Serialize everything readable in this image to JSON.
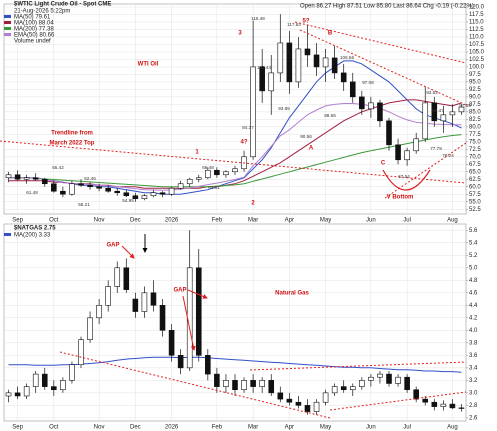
{
  "chart_data": [
    {
      "type": "candlestick",
      "title": "$WTIC Light Crude Oil - Spot CME",
      "date": "21-Aug-2026 5:22pm",
      "quote": "Open 86.27 High 87.51 Low 85.80 Last 86.64 Chg -0.19 (-0.22%)",
      "volume_label": "Volume undef",
      "categories": [
        null,
        "Sep",
        null,
        null,
        null,
        "Oct",
        null,
        null,
        null,
        null,
        "Nov",
        null,
        null,
        null,
        "Dec",
        null,
        null,
        null,
        "2026",
        null,
        null,
        null,
        null,
        "Feb",
        null,
        null,
        null,
        "Mar",
        null,
        null,
        null,
        "Apr",
        null,
        null,
        null,
        "May",
        null,
        null,
        null,
        null,
        "Jun",
        null,
        null,
        null,
        "Jul",
        null,
        null,
        null,
        null,
        "Aug",
        null
      ],
      "open": [
        63,
        64,
        62.5,
        63,
        62.5,
        61,
        58.5,
        57.5,
        61,
        60.5,
        60,
        59.5,
        58.5,
        58,
        57,
        56,
        57,
        58,
        57.5,
        59.5,
        61,
        62.5,
        63,
        65.5,
        64,
        65,
        66,
        70,
        100,
        92,
        98,
        108,
        95,
        106,
        104,
        100,
        103,
        98,
        95,
        90,
        86,
        88,
        82,
        74,
        69,
        72,
        76,
        88,
        82,
        84,
        85
      ],
      "high": [
        65,
        65.5,
        64,
        64.5,
        63,
        62,
        60,
        62,
        62.5,
        61.5,
        61,
        60.5,
        59.5,
        59,
        58,
        57.5,
        59,
        58.5,
        60,
        62,
        63,
        64,
        66.5,
        66.5,
        65.5,
        67,
        72,
        115.5,
        106,
        104,
        117.6,
        112,
        110,
        114,
        108,
        106,
        107,
        101,
        98,
        92,
        90,
        89,
        83,
        76,
        73,
        78,
        93.5,
        90,
        87,
        87.5,
        87.5
      ],
      "low": [
        61.5,
        62,
        61,
        62,
        60,
        58,
        56.5,
        57,
        60,
        59,
        58.5,
        58,
        57,
        56.5,
        55,
        55.5,
        56.5,
        56.5,
        57,
        59,
        60,
        61.5,
        62.5,
        63,
        63,
        64,
        65,
        69,
        88,
        84,
        95,
        91,
        93,
        100,
        97,
        95,
        96,
        92,
        88,
        84,
        83,
        80,
        72,
        67.5,
        67,
        71,
        75,
        80,
        78,
        80,
        84
      ],
      "close": [
        64,
        62.5,
        63,
        62.5,
        61,
        58.5,
        57.5,
        61,
        60.5,
        60,
        59.5,
        58.5,
        58,
        57,
        56,
        57,
        58,
        57.5,
        59.5,
        61,
        62.5,
        63,
        65.5,
        64,
        65,
        66,
        70,
        100,
        92,
        98,
        108,
        95,
        106,
        104,
        100,
        103,
        98,
        95,
        90,
        86,
        88,
        82,
        74,
        69,
        72,
        76,
        88,
        82,
        84,
        85,
        86.6
      ],
      "series": [
        {
          "name": "MA(50) 79.61",
          "color": "#3050c8",
          "values": [
            63,
            63,
            63,
            63,
            62.5,
            62,
            61.5,
            61,
            60.5,
            60.5,
            60,
            60,
            59.5,
            59,
            58.5,
            58,
            58,
            57.5,
            57.5,
            57.5,
            58,
            58.5,
            59,
            60,
            61,
            62,
            63,
            66,
            69,
            73,
            78,
            83,
            87,
            91,
            95,
            98,
            100,
            102,
            102,
            101,
            99,
            97,
            95,
            92,
            89,
            86,
            84,
            83,
            82,
            81,
            79.6
          ]
        },
        {
          "name": "MA(100) 88.04",
          "color": "#a02040",
          "values": [
            62,
            62,
            62,
            62,
            62,
            61.5,
            61.5,
            61,
            61,
            61,
            60.5,
            60.5,
            60,
            60,
            60,
            59.5,
            59.5,
            59.5,
            59.5,
            59.5,
            59.5,
            59.5,
            60,
            60,
            60.5,
            61,
            62,
            63.5,
            65,
            66.5,
            68,
            70,
            72,
            74,
            76,
            78,
            80,
            82,
            83.5,
            85,
            86,
            87,
            88,
            88.5,
            89,
            89,
            88.5,
            88,
            87.5,
            87,
            88
          ]
        },
        {
          "name": "MA(200) 77.38",
          "color": "#3a9a3a",
          "values": [
            63,
            63,
            63,
            62.8,
            62.6,
            62.4,
            62.2,
            62,
            61.8,
            61.6,
            61.4,
            61.2,
            61,
            60.8,
            60.6,
            60.4,
            60.2,
            60,
            60,
            60,
            60,
            60,
            60,
            60.2,
            60.4,
            60.6,
            61,
            61.8,
            62.6,
            63.4,
            64.2,
            65,
            65.8,
            66.6,
            67.4,
            68.2,
            69,
            69.8,
            70.6,
            71.4,
            72,
            72.6,
            73.2,
            73.8,
            74.4,
            75,
            75.6,
            76.2,
            76.7,
            77.1,
            77.4
          ]
        },
        {
          "name": "EMA(50) 80.66",
          "color": "#b080d0",
          "values": [
            63,
            63,
            63,
            62.8,
            62.4,
            61.9,
            61.3,
            61.1,
            60.9,
            60.8,
            60.6,
            60.3,
            60,
            59.7,
            59.3,
            59,
            58.9,
            58.8,
            58.9,
            59.2,
            59.6,
            60.1,
            60.7,
            61.2,
            61.8,
            62.4,
            63.2,
            67,
            70,
            73.5,
            77,
            79,
            81.5,
            84,
            85.6,
            87,
            87.5,
            87.8,
            87.8,
            87.5,
            87,
            86.2,
            85,
            83.5,
            82.3,
            81.5,
            81.2,
            80.9,
            80.8,
            80.7,
            80.66
          ]
        }
      ],
      "ylim": [
        50.9,
        121
      ],
      "yticks": [
        52.5,
        {
          "value": 55,
          "label": "55.0"
        },
        57.5,
        {
          "value": 60,
          "label": "60.0"
        },
        62.5,
        {
          "value": 65,
          "label": "65.0"
        },
        67.5,
        {
          "value": 70,
          "label": "70.0"
        },
        72.5,
        {
          "value": 75,
          "label": "75.0"
        },
        77.5,
        {
          "value": 80,
          "label": "80.0"
        },
        82.5,
        {
          "value": 85,
          "label": "85.0"
        },
        87.5,
        {
          "value": 90,
          "label": "90.0"
        },
        92.5,
        {
          "value": 95,
          "label": "95.0"
        },
        97.5,
        {
          "value": 100,
          "label": "100.0"
        },
        102.5,
        {
          "value": 105,
          "label": "105.0"
        },
        107.5,
        {
          "value": 110,
          "label": "110.0"
        },
        112.5,
        {
          "value": 115,
          "label": "115.0"
        },
        117.5,
        {
          "value": 120,
          "label": "120.0"
        }
      ],
      "grid": true,
      "annotations": [
        "WTI Oil",
        "Trendline from",
        "March 2022 Top",
        "V Bottom",
        "1",
        "2",
        "3",
        "4?",
        "5?",
        "A",
        "B",
        "C",
        "115.48",
        "117.63",
        "102.44",
        "106.56",
        "97.08",
        "93.53",
        "84.37",
        "93.85",
        "90.56",
        "88.66",
        "86.47",
        "87.69",
        "77.79",
        "79.24",
        "67.54",
        "66.48",
        "61.81",
        "65.42",
        "62.46",
        "61.48",
        "58.21",
        "54.95"
      ]
    },
    {
      "type": "candlestick",
      "title": "$NATGAS 2.75",
      "categories": [
        null,
        "Sep",
        null,
        null,
        null,
        "Oct",
        null,
        null,
        null,
        null,
        "Nov",
        null,
        null,
        null,
        "Dec",
        null,
        null,
        null,
        "2026",
        null,
        null,
        null,
        null,
        "Feb",
        null,
        null,
        null,
        "Mar",
        null,
        null,
        null,
        "Apr",
        null,
        null,
        null,
        "May",
        null,
        null,
        null,
        null,
        "Jun",
        null,
        null,
        null,
        "Jul",
        null,
        null,
        null,
        null,
        "Aug",
        null
      ],
      "open": [
        2.95,
        3.0,
        2.95,
        3.1,
        3.3,
        3.1,
        3.05,
        3.2,
        3.45,
        3.85,
        4.2,
        4.4,
        4.7,
        5.0,
        4.5,
        4.3,
        4.6,
        4.4,
        4.0,
        3.6,
        3.4,
        5.0,
        3.6,
        3.3,
        3.1,
        3.2,
        3.05,
        3.2,
        3.1,
        3.2,
        3.0,
        2.9,
        2.85,
        2.8,
        2.7,
        2.85,
        3.0,
        3.1,
        3.05,
        3.1,
        3.2,
        3.25,
        3.3,
        3.15,
        3.25,
        3.05,
        2.9,
        2.85,
        2.78,
        2.82,
        2.76
      ],
      "high": [
        3.05,
        3.1,
        3.15,
        3.35,
        3.4,
        3.2,
        3.25,
        3.5,
        3.9,
        4.3,
        4.5,
        4.8,
        5.1,
        5.15,
        4.6,
        4.7,
        4.8,
        4.5,
        4.1,
        3.7,
        5.6,
        5.3,
        3.7,
        3.4,
        3.3,
        3.3,
        3.25,
        3.3,
        3.25,
        3.3,
        3.1,
        3.0,
        2.95,
        2.9,
        2.9,
        3.05,
        3.15,
        3.2,
        3.15,
        3.25,
        3.3,
        3.35,
        3.35,
        3.3,
        3.3,
        3.1,
        2.95,
        2.9,
        2.88,
        2.9,
        2.82
      ],
      "low": [
        2.85,
        2.9,
        2.9,
        3.0,
        3.05,
        2.95,
        3.0,
        3.15,
        3.4,
        3.8,
        4.1,
        4.3,
        4.6,
        4.6,
        4.2,
        4.2,
        4.3,
        3.9,
        3.5,
        3.3,
        3.35,
        3.5,
        3.2,
        3.0,
        3.0,
        2.95,
        3.0,
        3.0,
        3.0,
        2.95,
        2.85,
        2.8,
        2.75,
        2.65,
        2.65,
        2.8,
        2.95,
        3.0,
        2.95,
        3.05,
        3.1,
        3.15,
        3.1,
        3.1,
        3.0,
        2.85,
        2.8,
        2.72,
        2.72,
        2.74,
        2.7
      ],
      "close": [
        3.0,
        2.95,
        3.1,
        3.3,
        3.1,
        3.05,
        3.2,
        3.45,
        3.85,
        4.2,
        4.4,
        4.7,
        5.0,
        4.65,
        4.3,
        4.6,
        4.4,
        4.0,
        3.6,
        3.4,
        5.0,
        3.6,
        3.3,
        3.1,
        3.2,
        3.05,
        3.2,
        3.1,
        3.2,
        3.0,
        2.9,
        2.85,
        2.8,
        2.7,
        2.85,
        3.0,
        3.1,
        3.05,
        3.1,
        3.2,
        3.25,
        3.3,
        3.15,
        3.25,
        3.05,
        2.9,
        2.85,
        2.78,
        2.82,
        2.76,
        2.75
      ],
      "series": [
        {
          "name": "MA(200) 3.33",
          "color": "#3050c8",
          "values": [
            3.45,
            3.45,
            3.45,
            3.44,
            3.44,
            3.44,
            3.45,
            3.45,
            3.46,
            3.47,
            3.48,
            3.5,
            3.52,
            3.54,
            3.55,
            3.56,
            3.57,
            3.57,
            3.57,
            3.56,
            3.57,
            3.57,
            3.56,
            3.55,
            3.54,
            3.53,
            3.52,
            3.51,
            3.5,
            3.49,
            3.48,
            3.47,
            3.46,
            3.45,
            3.44,
            3.43,
            3.42,
            3.41,
            3.41,
            3.4,
            3.4,
            3.39,
            3.38,
            3.37,
            3.37,
            3.36,
            3.35,
            3.35,
            3.34,
            3.34,
            3.33
          ]
        }
      ],
      "ylim": [
        2.55,
        5.7
      ],
      "yticks": [
        2.6,
        2.8,
        {
          "value": 3,
          "label": "3.0"
        },
        3.2,
        3.4,
        3.6,
        3.8,
        {
          "value": 4,
          "label": "4.0"
        },
        4.2,
        4.4,
        4.6,
        4.8,
        {
          "value": 5,
          "label": "5.0"
        },
        5.2,
        5.4,
        5.6
      ],
      "grid": true,
      "annotations": [
        "GAP",
        "GAP",
        "Natural Gas"
      ]
    }
  ]
}
